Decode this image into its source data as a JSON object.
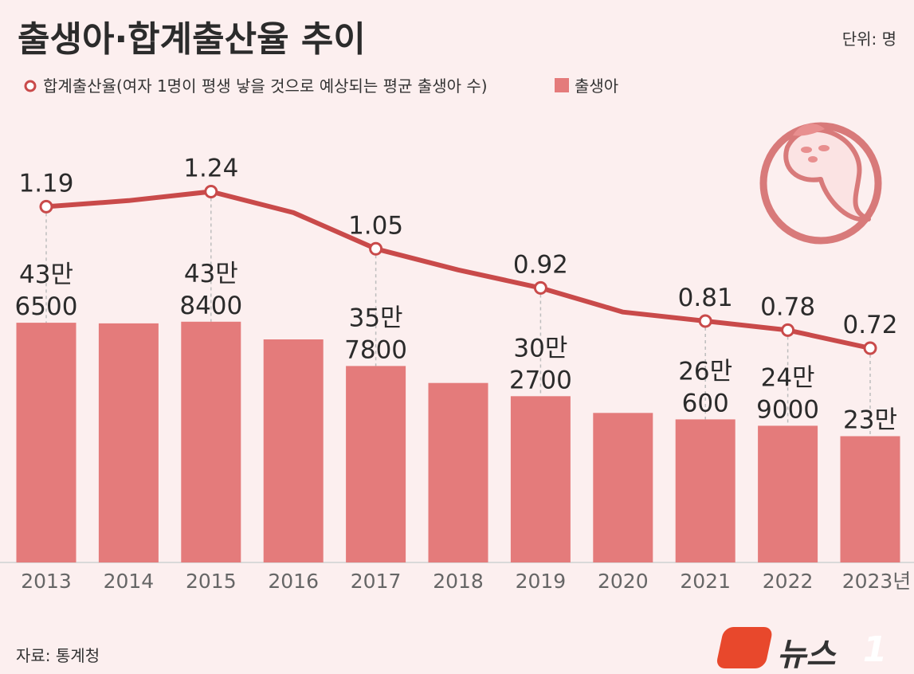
{
  "header": {
    "title": "출생아·합계출산율 추이",
    "unit_note": "단위: 명"
  },
  "legend": {
    "line_label": "합계출산율(여자 1명이 평생 낳을 것으로 예상되는 평균 출생아 수)",
    "bar_label": "출생아"
  },
  "footer": {
    "source": "자료: 통계청",
    "logo_text": "뉴스",
    "logo_badge": "1"
  },
  "colors": {
    "background": "#fcefef",
    "bar": "#e47b7b",
    "line": "#c94a4a",
    "marker_fill": "#ffffff",
    "guide": "#bdbdbd",
    "baseline": "#d9d9d9",
    "logo_accent": "#e8482c",
    "baby_circle": "#d87a7a",
    "baby_skin": "#fbe3e3",
    "baby_cheek": "#e88f8f"
  },
  "icons": {
    "illustration": "swaddled-baby-icon"
  },
  "chart_data": {
    "type": "bar",
    "categories": [
      "2013",
      "2014",
      "2015",
      "2016",
      "2017",
      "2018",
      "2019",
      "2020",
      "2021",
      "2022",
      "2023년"
    ],
    "series": [
      {
        "name": "출생아",
        "type": "bar",
        "values": [
          436500,
          435400,
          438400,
          406200,
          357800,
          326800,
          302700,
          272300,
          260600,
          249000,
          230000
        ],
        "data_labels": [
          [
            "43만",
            "6500"
          ],
          null,
          [
            "43만",
            "8400"
          ],
          null,
          [
            "35만",
            "7800"
          ],
          null,
          [
            "30만",
            "2700"
          ],
          null,
          [
            "26만",
            "600"
          ],
          [
            "24만",
            "9000"
          ],
          [
            "23만"
          ]
        ]
      },
      {
        "name": "합계출산율",
        "type": "line",
        "values": [
          1.19,
          1.21,
          1.24,
          1.17,
          1.05,
          0.98,
          0.92,
          0.84,
          0.81,
          0.78,
          0.72
        ],
        "data_labels": [
          "1.19",
          null,
          "1.24",
          null,
          "1.05",
          null,
          "0.92",
          null,
          "0.81",
          "0.78",
          "0.72"
        ]
      }
    ],
    "bar_axis_range": [
      0,
      476000
    ],
    "line_axis_range": [
      0.4,
      1.4
    ],
    "grid": false,
    "legend_position": "top-left"
  }
}
